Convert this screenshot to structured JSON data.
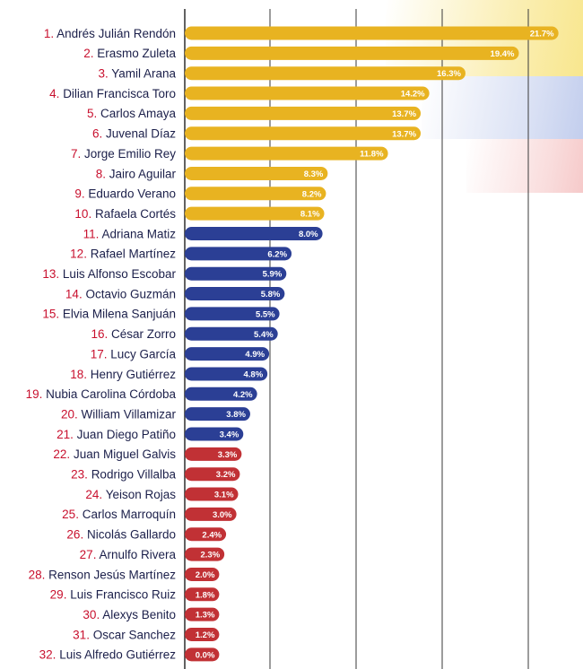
{
  "colors": {
    "gold": "#e8b321",
    "blue": "#2b3f95",
    "red": "#c13135",
    "rank_number": "#c8102e",
    "name_text": "#1b1f4a",
    "gridline": "#3a3a3a",
    "background_flag_yellow": "#f7e27a",
    "background_flag_blue": "#a9b9e6",
    "background_flag_red": "#f2b3b3"
  },
  "chart_data": {
    "type": "bar",
    "orientation": "horizontal",
    "title": "",
    "xlabel": "",
    "ylabel": "",
    "xlim": [
      0,
      22
    ],
    "grid": true,
    "value_suffix": "%",
    "rows": [
      {
        "rank": "1.",
        "name": "Andrés Julián Rendón",
        "value": 21.7,
        "label": "21.7%",
        "group": "gold"
      },
      {
        "rank": "2.",
        "name": "Erasmo Zuleta",
        "value": 19.4,
        "label": "19.4%",
        "group": "gold"
      },
      {
        "rank": "3.",
        "name": "Yamil Arana",
        "value": 16.3,
        "label": "16.3%",
        "group": "gold"
      },
      {
        "rank": "4.",
        "name": "Dilian Francisca Toro",
        "value": 14.2,
        "label": "14.2%",
        "group": "gold"
      },
      {
        "rank": "5.",
        "name": "Carlos Amaya",
        "value": 13.7,
        "label": "13.7%",
        "group": "gold"
      },
      {
        "rank": "6.",
        "name": "Juvenal Díaz",
        "value": 13.7,
        "label": "13.7%",
        "group": "gold"
      },
      {
        "rank": "7.",
        "name": "Jorge Emilio Rey",
        "value": 11.8,
        "label": "11.8%",
        "group": "gold"
      },
      {
        "rank": "8.",
        "name": "Jairo Aguilar",
        "value": 8.3,
        "label": "8.3%",
        "group": "gold"
      },
      {
        "rank": "9.",
        "name": "Eduardo Verano",
        "value": 8.2,
        "label": "8.2%",
        "group": "gold"
      },
      {
        "rank": "10.",
        "name": "Rafaela Cortés",
        "value": 8.1,
        "label": "8.1%",
        "group": "gold"
      },
      {
        "rank": "11.",
        "name": "Adriana Matiz",
        "value": 8.0,
        "label": "8.0%",
        "group": "blue"
      },
      {
        "rank": "12.",
        "name": "Rafael Martínez",
        "value": 6.2,
        "label": "6.2%",
        "group": "blue"
      },
      {
        "rank": "13.",
        "name": "Luis Alfonso Escobar",
        "value": 5.9,
        "label": "5.9%",
        "group": "blue"
      },
      {
        "rank": "14.",
        "name": "Octavio Guzmán",
        "value": 5.8,
        "label": "5.8%",
        "group": "blue"
      },
      {
        "rank": "15.",
        "name": "Elvia Milena Sanjuán",
        "value": 5.5,
        "label": "5.5%",
        "group": "blue"
      },
      {
        "rank": "16.",
        "name": "César Zorro",
        "value": 5.4,
        "label": "5.4%",
        "group": "blue"
      },
      {
        "rank": "17.",
        "name": "Lucy García",
        "value": 4.9,
        "label": "4.9%",
        "group": "blue"
      },
      {
        "rank": "18.",
        "name": "Henry Gutiérrez",
        "value": 4.8,
        "label": "4.8%",
        "group": "blue"
      },
      {
        "rank": "19.",
        "name": "Nubia Carolina Córdoba",
        "value": 4.2,
        "label": "4.2%",
        "group": "blue"
      },
      {
        "rank": "20.",
        "name": "William Villamizar",
        "value": 3.8,
        "label": "3.8%",
        "group": "blue"
      },
      {
        "rank": "21.",
        "name": "Juan Diego Patiño",
        "value": 3.4,
        "label": "3.4%",
        "group": "blue"
      },
      {
        "rank": "22.",
        "name": "Juan Miguel Galvis",
        "value": 3.3,
        "label": "3.3%",
        "group": "red"
      },
      {
        "rank": "23.",
        "name": "Rodrigo Villalba",
        "value": 3.2,
        "label": "3.2%",
        "group": "red"
      },
      {
        "rank": "24.",
        "name": "Yeison Rojas",
        "value": 3.1,
        "label": "3.1%",
        "group": "red"
      },
      {
        "rank": "25.",
        "name": "Carlos Marroquín",
        "value": 3.0,
        "label": "3.0%",
        "group": "red"
      },
      {
        "rank": "26.",
        "name": "Nicolás Gallardo",
        "value": 2.4,
        "label": "2.4%",
        "group": "red"
      },
      {
        "rank": "27.",
        "name": "Arnulfo Rivera",
        "value": 2.3,
        "label": "2.3%",
        "group": "red"
      },
      {
        "rank": "28.",
        "name": "Renson Jesús Martínez",
        "value": 2.0,
        "label": "2.0%",
        "group": "red"
      },
      {
        "rank": "29.",
        "name": "Luis Francisco Ruiz",
        "value": 1.8,
        "label": "1.8%",
        "group": "red"
      },
      {
        "rank": "30.",
        "name": "Alexys Benito",
        "value": 1.3,
        "label": "1.3%",
        "group": "red"
      },
      {
        "rank": "31.",
        "name": "Oscar Sanchez",
        "value": 1.2,
        "label": "1.2%",
        "group": "red"
      },
      {
        "rank": "32.",
        "name": "Luis Alfredo Gutiérrez",
        "value": 0.0,
        "label": "0.0%",
        "group": "red"
      }
    ]
  }
}
